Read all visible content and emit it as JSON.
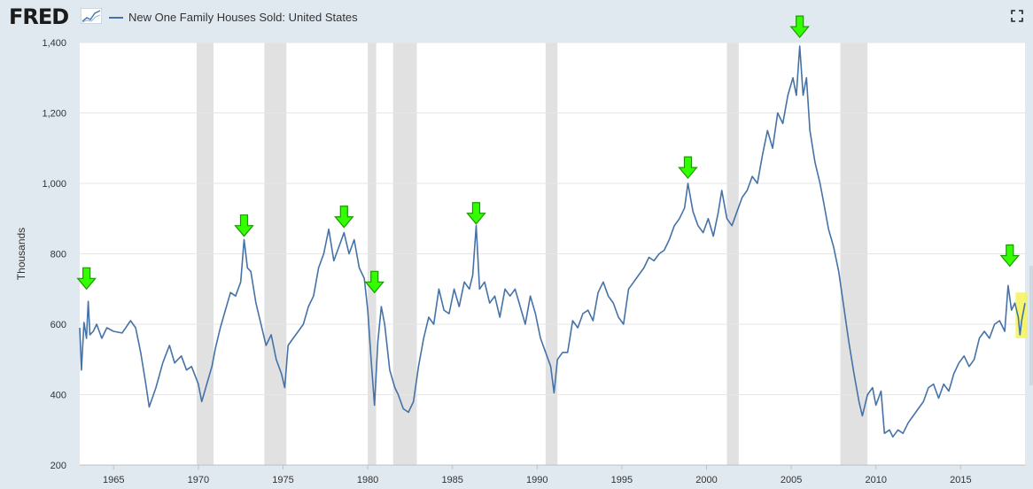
{
  "header": {
    "logo_text": "FRED",
    "series_title": "New One Family Houses Sold: United States",
    "fullscreen_icon": "fullscreen-icon"
  },
  "colors": {
    "background": "#e1e9f0",
    "plot_bg": "#ffffff",
    "series": "#4572a7",
    "recession": "#e1e1e1",
    "arrow": "#33ff00",
    "highlight": "#f3f35a"
  },
  "chart_data": {
    "type": "line",
    "title": "New One Family Houses Sold: United States",
    "ylabel": "Thousands",
    "xlabel": "",
    "ylim": [
      200,
      1400
    ],
    "xlim": [
      1963.0,
      2018.8
    ],
    "yticks": [
      200,
      400,
      600,
      800,
      1000,
      1200,
      1400
    ],
    "ytick_labels": [
      "200",
      "400",
      "600",
      "800",
      "1,000",
      "1,200",
      "1,400"
    ],
    "xticks": [
      1965,
      1970,
      1975,
      1980,
      1985,
      1990,
      1995,
      2000,
      2005,
      2010,
      2015
    ],
    "xtick_labels": [
      "1965",
      "1970",
      "1975",
      "1980",
      "1985",
      "1990",
      "1995",
      "2000",
      "2005",
      "2010",
      "2015"
    ],
    "recessions": [
      [
        1969.9,
        1970.9
      ],
      [
        1973.9,
        1975.2
      ],
      [
        1980.0,
        1980.5
      ],
      [
        1981.5,
        1982.9
      ],
      [
        1990.5,
        1991.2
      ],
      [
        2001.2,
        2001.9
      ],
      [
        2007.9,
        2009.5
      ]
    ],
    "series": [
      {
        "name": "New One Family Houses Sold: United States",
        "points": [
          [
            1963.0,
            590
          ],
          [
            1963.1,
            470
          ],
          [
            1963.25,
            605
          ],
          [
            1963.4,
            560
          ],
          [
            1963.5,
            665
          ],
          [
            1963.6,
            570
          ],
          [
            1963.8,
            580
          ],
          [
            1964.0,
            600
          ],
          [
            1964.3,
            560
          ],
          [
            1964.6,
            590
          ],
          [
            1965.0,
            580
          ],
          [
            1965.5,
            575
          ],
          [
            1966.0,
            610
          ],
          [
            1966.3,
            590
          ],
          [
            1966.6,
            520
          ],
          [
            1966.9,
            430
          ],
          [
            1967.1,
            365
          ],
          [
            1967.5,
            420
          ],
          [
            1967.9,
            490
          ],
          [
            1968.3,
            540
          ],
          [
            1968.6,
            490
          ],
          [
            1969.0,
            510
          ],
          [
            1969.3,
            470
          ],
          [
            1969.6,
            480
          ],
          [
            1970.0,
            430
          ],
          [
            1970.2,
            380
          ],
          [
            1970.5,
            430
          ],
          [
            1970.8,
            480
          ],
          [
            1971.0,
            530
          ],
          [
            1971.3,
            590
          ],
          [
            1971.6,
            640
          ],
          [
            1971.9,
            690
          ],
          [
            1972.2,
            680
          ],
          [
            1972.5,
            720
          ],
          [
            1972.7,
            840
          ],
          [
            1972.9,
            760
          ],
          [
            1973.1,
            750
          ],
          [
            1973.4,
            660
          ],
          [
            1973.7,
            600
          ],
          [
            1974.0,
            540
          ],
          [
            1974.3,
            570
          ],
          [
            1974.6,
            500
          ],
          [
            1974.9,
            460
          ],
          [
            1975.1,
            420
          ],
          [
            1975.3,
            540
          ],
          [
            1975.6,
            560
          ],
          [
            1975.9,
            580
          ],
          [
            1976.2,
            600
          ],
          [
            1976.5,
            650
          ],
          [
            1976.8,
            680
          ],
          [
            1977.1,
            760
          ],
          [
            1977.4,
            800
          ],
          [
            1977.7,
            870
          ],
          [
            1978.0,
            780
          ],
          [
            1978.3,
            820
          ],
          [
            1978.6,
            860
          ],
          [
            1978.9,
            800
          ],
          [
            1979.2,
            840
          ],
          [
            1979.5,
            760
          ],
          [
            1979.8,
            730
          ],
          [
            1980.0,
            640
          ],
          [
            1980.2,
            500
          ],
          [
            1980.4,
            370
          ],
          [
            1980.6,
            550
          ],
          [
            1980.8,
            650
          ],
          [
            1981.0,
            600
          ],
          [
            1981.3,
            470
          ],
          [
            1981.6,
            420
          ],
          [
            1981.8,
            400
          ],
          [
            1982.1,
            360
          ],
          [
            1982.4,
            350
          ],
          [
            1982.7,
            380
          ],
          [
            1983.0,
            480
          ],
          [
            1983.3,
            560
          ],
          [
            1983.6,
            620
          ],
          [
            1983.9,
            600
          ],
          [
            1984.2,
            700
          ],
          [
            1984.5,
            640
          ],
          [
            1984.8,
            630
          ],
          [
            1985.1,
            700
          ],
          [
            1985.4,
            650
          ],
          [
            1985.7,
            720
          ],
          [
            1986.0,
            700
          ],
          [
            1986.2,
            740
          ],
          [
            1986.4,
            880
          ],
          [
            1986.6,
            700
          ],
          [
            1986.9,
            720
          ],
          [
            1987.2,
            660
          ],
          [
            1987.5,
            680
          ],
          [
            1987.8,
            620
          ],
          [
            1988.1,
            700
          ],
          [
            1988.4,
            680
          ],
          [
            1988.7,
            700
          ],
          [
            1989.0,
            650
          ],
          [
            1989.3,
            600
          ],
          [
            1989.6,
            680
          ],
          [
            1989.9,
            630
          ],
          [
            1990.2,
            560
          ],
          [
            1990.5,
            520
          ],
          [
            1990.8,
            480
          ],
          [
            1991.0,
            405
          ],
          [
            1991.2,
            500
          ],
          [
            1991.5,
            520
          ],
          [
            1991.8,
            520
          ],
          [
            1992.1,
            610
          ],
          [
            1992.4,
            590
          ],
          [
            1992.7,
            630
          ],
          [
            1993.0,
            640
          ],
          [
            1993.3,
            610
          ],
          [
            1993.6,
            690
          ],
          [
            1993.9,
            720
          ],
          [
            1994.2,
            680
          ],
          [
            1994.5,
            660
          ],
          [
            1994.8,
            620
          ],
          [
            1995.1,
            600
          ],
          [
            1995.4,
            700
          ],
          [
            1995.7,
            720
          ],
          [
            1996.0,
            740
          ],
          [
            1996.3,
            760
          ],
          [
            1996.6,
            790
          ],
          [
            1996.9,
            780
          ],
          [
            1997.2,
            800
          ],
          [
            1997.5,
            810
          ],
          [
            1997.8,
            840
          ],
          [
            1998.1,
            880
          ],
          [
            1998.4,
            900
          ],
          [
            1998.7,
            930
          ],
          [
            1998.9,
            1000
          ],
          [
            1999.2,
            920
          ],
          [
            1999.5,
            880
          ],
          [
            1999.8,
            860
          ],
          [
            2000.1,
            900
          ],
          [
            2000.4,
            850
          ],
          [
            2000.7,
            920
          ],
          [
            2000.9,
            980
          ],
          [
            2001.2,
            900
          ],
          [
            2001.5,
            880
          ],
          [
            2001.8,
            920
          ],
          [
            2002.1,
            960
          ],
          [
            2002.4,
            980
          ],
          [
            2002.7,
            1020
          ],
          [
            2003.0,
            1000
          ],
          [
            2003.3,
            1080
          ],
          [
            2003.6,
            1150
          ],
          [
            2003.9,
            1100
          ],
          [
            2004.2,
            1200
          ],
          [
            2004.5,
            1170
          ],
          [
            2004.8,
            1250
          ],
          [
            2005.1,
            1300
          ],
          [
            2005.3,
            1250
          ],
          [
            2005.5,
            1390
          ],
          [
            2005.7,
            1250
          ],
          [
            2005.9,
            1300
          ],
          [
            2006.1,
            1150
          ],
          [
            2006.4,
            1060
          ],
          [
            2006.7,
            1000
          ],
          [
            2006.9,
            950
          ],
          [
            2007.2,
            870
          ],
          [
            2007.5,
            820
          ],
          [
            2007.8,
            750
          ],
          [
            2008.1,
            650
          ],
          [
            2008.4,
            550
          ],
          [
            2008.7,
            460
          ],
          [
            2009.0,
            380
          ],
          [
            2009.2,
            340
          ],
          [
            2009.5,
            400
          ],
          [
            2009.8,
            420
          ],
          [
            2010.0,
            370
          ],
          [
            2010.3,
            410
          ],
          [
            2010.5,
            290
          ],
          [
            2010.8,
            300
          ],
          [
            2011.0,
            280
          ],
          [
            2011.3,
            300
          ],
          [
            2011.6,
            290
          ],
          [
            2011.9,
            320
          ],
          [
            2012.2,
            340
          ],
          [
            2012.5,
            360
          ],
          [
            2012.8,
            380
          ],
          [
            2013.1,
            420
          ],
          [
            2013.4,
            430
          ],
          [
            2013.7,
            390
          ],
          [
            2014.0,
            430
          ],
          [
            2014.3,
            410
          ],
          [
            2014.6,
            460
          ],
          [
            2014.9,
            490
          ],
          [
            2015.2,
            510
          ],
          [
            2015.5,
            480
          ],
          [
            2015.8,
            500
          ],
          [
            2016.1,
            560
          ],
          [
            2016.4,
            580
          ],
          [
            2016.7,
            560
          ],
          [
            2017.0,
            600
          ],
          [
            2017.3,
            610
          ],
          [
            2017.6,
            580
          ],
          [
            2017.8,
            710
          ],
          [
            2018.0,
            640
          ],
          [
            2018.2,
            660
          ],
          [
            2018.4,
            620
          ],
          [
            2018.5,
            570
          ],
          [
            2018.6,
            610
          ],
          [
            2018.8,
            660
          ]
        ]
      }
    ],
    "annotations": [
      {
        "type": "down-arrow",
        "x": 1963.4,
        "y": 725
      },
      {
        "type": "down-arrow",
        "x": 1972.7,
        "y": 875
      },
      {
        "type": "down-arrow",
        "x": 1978.6,
        "y": 900
      },
      {
        "type": "down-arrow",
        "x": 1980.4,
        "y": 715
      },
      {
        "type": "down-arrow",
        "x": 1986.4,
        "y": 910
      },
      {
        "type": "down-arrow",
        "x": 1998.9,
        "y": 1040
      },
      {
        "type": "down-arrow",
        "x": 2005.5,
        "y": 1440
      },
      {
        "type": "down-arrow",
        "x": 2017.9,
        "y": 790
      },
      {
        "type": "highlight-box",
        "x0": 2018.4,
        "x1": 2018.8,
        "y0": 560,
        "y1": 690
      }
    ]
  }
}
